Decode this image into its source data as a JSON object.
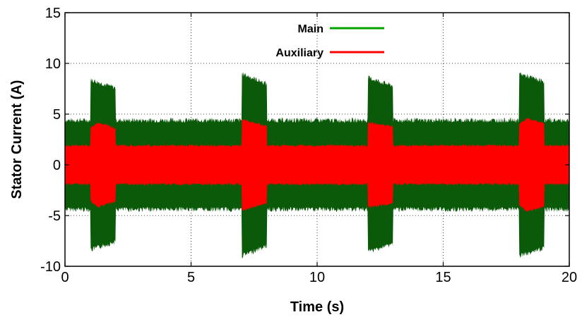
{
  "chart_data": {
    "type": "area",
    "xlabel": "Time (s)",
    "ylabel": "Stator Current (A)",
    "xlim": [
      0,
      20
    ],
    "ylim": [
      -10,
      15
    ],
    "xticks": [
      0,
      5,
      10,
      15,
      20
    ],
    "yticks": [
      -10,
      -5,
      0,
      5,
      10,
      15
    ],
    "grid": true,
    "legend": "top-center",
    "series": [
      {
        "name": "Main",
        "color": "#00a000",
        "fill_color": "#0a5a0a",
        "x": [
          0,
          1,
          1.01,
          2,
          2.01,
          7,
          7.01,
          8,
          8.01,
          12,
          12.01,
          13,
          13.01,
          18,
          18.01,
          19,
          19.01,
          20
        ],
        "amplitude": [
          4.4,
          4.4,
          8.4,
          7.6,
          4.4,
          4.4,
          9.0,
          8.0,
          4.4,
          4.4,
          8.6,
          7.8,
          4.4,
          4.4,
          9.0,
          8.2,
          4.4,
          4.4
        ]
      },
      {
        "name": "Auxiliary",
        "color": "#ff0000",
        "fill_color": "#ff0000",
        "x": [
          0,
          1,
          1.01,
          1.3,
          2,
          2.01,
          7,
          7.01,
          8,
          8.01,
          12,
          12.01,
          13,
          13.01,
          18,
          18.01,
          18.3,
          19,
          19.01,
          20
        ],
        "amplitude": [
          1.9,
          1.9,
          3.6,
          4.2,
          3.6,
          1.9,
          1.9,
          4.5,
          3.8,
          1.9,
          1.9,
          4.2,
          3.8,
          1.9,
          1.9,
          4.0,
          4.6,
          4.1,
          1.9,
          1.9
        ]
      }
    ]
  }
}
